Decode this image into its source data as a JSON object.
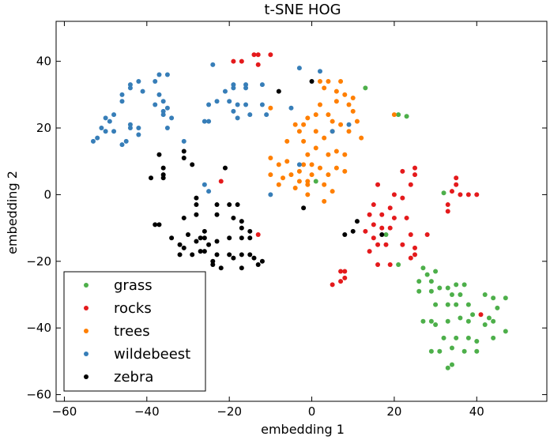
{
  "chart_data": {
    "type": "scatter",
    "title": "t-SNE HOG",
    "xlabel": "embedding 1",
    "ylabel": "embedding 2",
    "xlim": [
      -62,
      57
    ],
    "ylim": [
      -62,
      52
    ],
    "xticks": [
      -60,
      -40,
      -20,
      0,
      20,
      40
    ],
    "yticks": [
      -60,
      -40,
      -20,
      0,
      20,
      40
    ],
    "grid": false,
    "legend_position": "lower-left",
    "series": [
      {
        "name": "grass",
        "color": "#4daf4a",
        "points": [
          [
            13,
            32
          ],
          [
            21,
            24
          ],
          [
            23,
            23.5
          ],
          [
            1,
            4
          ],
          [
            32,
            0.5
          ],
          [
            18,
            -12
          ],
          [
            21,
            -21
          ],
          [
            27,
            -22
          ],
          [
            28,
            -24
          ],
          [
            30,
            -23
          ],
          [
            26,
            -26
          ],
          [
            26,
            -29
          ],
          [
            29,
            -26
          ],
          [
            29,
            -29
          ],
          [
            31,
            -28
          ],
          [
            33,
            -28
          ],
          [
            35,
            -27
          ],
          [
            37,
            -27
          ],
          [
            34,
            -30
          ],
          [
            36,
            -30
          ],
          [
            30,
            -33
          ],
          [
            33,
            -33
          ],
          [
            35,
            -33
          ],
          [
            38,
            -33
          ],
          [
            42,
            -30
          ],
          [
            44,
            -31
          ],
          [
            47,
            -31
          ],
          [
            45,
            -34
          ],
          [
            27,
            -38
          ],
          [
            29,
            -38
          ],
          [
            30,
            -39
          ],
          [
            33,
            -38
          ],
          [
            36,
            -37
          ],
          [
            38,
            -38
          ],
          [
            39,
            -36
          ],
          [
            42,
            -39
          ],
          [
            43,
            -37
          ],
          [
            44,
            -38
          ],
          [
            47,
            -41
          ],
          [
            29,
            -47
          ],
          [
            31,
            -47
          ],
          [
            34,
            -46
          ],
          [
            37,
            -47
          ],
          [
            40,
            -47
          ],
          [
            32,
            -43
          ],
          [
            35,
            -43
          ],
          [
            38,
            -43
          ],
          [
            40,
            -44
          ],
          [
            44,
            -43
          ],
          [
            34,
            -51
          ],
          [
            33,
            -52
          ]
        ]
      },
      {
        "name": "rocks",
        "color": "#e41a1c",
        "points": [
          [
            -19,
            40
          ],
          [
            -17,
            40
          ],
          [
            -14,
            42
          ],
          [
            -13,
            42
          ],
          [
            -13,
            39
          ],
          [
            -10,
            42
          ],
          [
            -22,
            4
          ],
          [
            -13,
            -12
          ],
          [
            22,
            7
          ],
          [
            25,
            8
          ],
          [
            25,
            6
          ],
          [
            24,
            3
          ],
          [
            16,
            3
          ],
          [
            20,
            0
          ],
          [
            22,
            -1
          ],
          [
            19,
            -4
          ],
          [
            15,
            -3
          ],
          [
            14,
            -6
          ],
          [
            17,
            -6
          ],
          [
            20,
            -7
          ],
          [
            23,
            -7
          ],
          [
            15,
            -9
          ],
          [
            17,
            -10
          ],
          [
            19,
            -10
          ],
          [
            13,
            -11
          ],
          [
            15,
            -13
          ],
          [
            16,
            -15
          ],
          [
            14,
            -17
          ],
          [
            22,
            -15
          ],
          [
            18,
            -15
          ],
          [
            24,
            -12
          ],
          [
            25,
            -16
          ],
          [
            25,
            -18
          ],
          [
            24,
            -19
          ],
          [
            28,
            -12
          ],
          [
            16,
            -21
          ],
          [
            19,
            -21
          ],
          [
            8,
            -23
          ],
          [
            7,
            -23
          ],
          [
            7,
            -26
          ],
          [
            5,
            -27
          ],
          [
            8,
            -25
          ],
          [
            35,
            5
          ],
          [
            35,
            3
          ],
          [
            34,
            1
          ],
          [
            36,
            0
          ],
          [
            38,
            0
          ],
          [
            40,
            0
          ],
          [
            33,
            -3
          ],
          [
            33,
            -5
          ],
          [
            41,
            -36
          ]
        ]
      },
      {
        "name": "trees",
        "color": "#ff7f00",
        "points": [
          [
            2,
            34
          ],
          [
            4,
            34
          ],
          [
            7,
            34
          ],
          [
            3,
            32
          ],
          [
            6,
            31
          ],
          [
            8,
            30
          ],
          [
            10,
            29
          ],
          [
            2,
            27
          ],
          [
            6,
            28
          ],
          [
            9,
            27
          ],
          [
            10,
            25
          ],
          [
            4,
            24
          ],
          [
            1,
            24
          ],
          [
            -1,
            23
          ],
          [
            5,
            22
          ],
          [
            7,
            21
          ],
          [
            -4,
            21
          ],
          [
            -2,
            21
          ],
          [
            -3,
            19
          ],
          [
            1,
            19
          ],
          [
            5,
            19
          ],
          [
            9,
            19
          ],
          [
            11,
            22
          ],
          [
            12,
            17
          ],
          [
            -2,
            16
          ],
          [
            3,
            17
          ],
          [
            1,
            14
          ],
          [
            -1,
            12
          ],
          [
            4,
            12
          ],
          [
            6,
            13
          ],
          [
            8,
            12
          ],
          [
            -6,
            16
          ],
          [
            -10,
            11
          ],
          [
            -8,
            9
          ],
          [
            -6,
            10
          ],
          [
            -2,
            9
          ],
          [
            0,
            9
          ],
          [
            2,
            8
          ],
          [
            -3,
            7
          ],
          [
            4,
            6
          ],
          [
            6,
            8
          ],
          [
            8,
            7
          ],
          [
            -10,
            6
          ],
          [
            -7,
            5
          ],
          [
            -5,
            6
          ],
          [
            -3,
            4
          ],
          [
            -1,
            4
          ],
          [
            -8,
            3
          ],
          [
            -4,
            2
          ],
          [
            3,
            3
          ],
          [
            5,
            1
          ],
          [
            0,
            6
          ],
          [
            -1,
            0
          ],
          [
            3,
            -2
          ],
          [
            -1,
            3
          ],
          [
            -10,
            26
          ],
          [
            20,
            24
          ]
        ]
      },
      {
        "name": "wildebeest",
        "color": "#377eb8",
        "points": [
          [
            -24,
            39
          ],
          [
            -3,
            38
          ],
          [
            2,
            37
          ],
          [
            -5,
            26
          ],
          [
            -16,
            27
          ],
          [
            -18,
            27
          ],
          [
            -12,
            27
          ],
          [
            -15,
            24
          ],
          [
            -19,
            25
          ],
          [
            -18,
            23
          ],
          [
            -20,
            28
          ],
          [
            -23,
            28
          ],
          [
            -25,
            27
          ],
          [
            -21,
            31
          ],
          [
            -19,
            32
          ],
          [
            -16,
            32
          ],
          [
            -12,
            33
          ],
          [
            -16,
            33
          ],
          [
            -19,
            33
          ],
          [
            -11,
            24
          ],
          [
            9,
            21
          ],
          [
            5,
            19
          ],
          [
            -3,
            9
          ],
          [
            -10,
            0
          ],
          [
            -26,
            3
          ],
          [
            -25,
            1
          ],
          [
            -26,
            22
          ],
          [
            -25,
            22
          ],
          [
            -31,
            16
          ],
          [
            -35,
            20
          ],
          [
            -34,
            23
          ],
          [
            -36,
            24
          ],
          [
            -36,
            25
          ],
          [
            -38,
            27
          ],
          [
            -36,
            28
          ],
          [
            -35,
            26
          ],
          [
            -37,
            30
          ],
          [
            -38,
            34
          ],
          [
            -37,
            36
          ],
          [
            -35,
            36
          ],
          [
            -42,
            34
          ],
          [
            -44,
            33
          ],
          [
            -44,
            32
          ],
          [
            -41,
            31
          ],
          [
            -46,
            30
          ],
          [
            -46,
            28
          ],
          [
            -48,
            24
          ],
          [
            -49,
            22
          ],
          [
            -50,
            23
          ],
          [
            -51,
            20
          ],
          [
            -52,
            17
          ],
          [
            -48,
            19
          ],
          [
            -50,
            19
          ],
          [
            -44,
            21
          ],
          [
            -44,
            20
          ],
          [
            -42,
            20
          ],
          [
            -42,
            18
          ],
          [
            -45,
            16
          ],
          [
            -46,
            15
          ],
          [
            -53,
            16
          ]
        ]
      },
      {
        "name": "zebra",
        "color": "#000000",
        "points": [
          [
            -8,
            31
          ],
          [
            0,
            34
          ],
          [
            -37,
            12
          ],
          [
            -36,
            8
          ],
          [
            -36,
            6
          ],
          [
            -36,
            5
          ],
          [
            -39,
            5
          ],
          [
            -31,
            13
          ],
          [
            -31,
            11
          ],
          [
            -29,
            9
          ],
          [
            -21,
            8
          ],
          [
            -28,
            -1
          ],
          [
            -28,
            -3
          ],
          [
            -28,
            -6
          ],
          [
            -31,
            -7
          ],
          [
            -23,
            -3
          ],
          [
            -20,
            -3
          ],
          [
            -18,
            -3
          ],
          [
            -23,
            -6
          ],
          [
            -19,
            -7
          ],
          [
            -17,
            -8
          ],
          [
            -17,
            -10
          ],
          [
            -15,
            -11
          ],
          [
            -15,
            -13
          ],
          [
            -17,
            -13
          ],
          [
            -20,
            -13
          ],
          [
            -23,
            -14
          ],
          [
            -26,
            -11
          ],
          [
            -26,
            -13
          ],
          [
            -28,
            -14
          ],
          [
            -30,
            -12
          ],
          [
            -25,
            -15
          ],
          [
            -23,
            -18
          ],
          [
            -24,
            -20
          ],
          [
            -26,
            -17
          ],
          [
            -27,
            -17
          ],
          [
            -29,
            -18
          ],
          [
            -31,
            -16
          ],
          [
            -32,
            -15
          ],
          [
            -32,
            -18
          ],
          [
            -20,
            -18
          ],
          [
            -19,
            -19
          ],
          [
            -17,
            -18
          ],
          [
            -15,
            -18
          ],
          [
            -14,
            -19
          ],
          [
            -12,
            -20
          ],
          [
            -13,
            -21
          ],
          [
            -17,
            -22
          ],
          [
            -22,
            -22
          ],
          [
            -24,
            -21
          ],
          [
            -37,
            -9
          ],
          [
            -38,
            -9
          ],
          [
            -34,
            -13
          ],
          [
            -27,
            -13
          ],
          [
            -2,
            -4
          ],
          [
            8,
            -12
          ],
          [
            10,
            -11
          ],
          [
            11,
            -8
          ],
          [
            17,
            -12
          ]
        ]
      }
    ]
  }
}
